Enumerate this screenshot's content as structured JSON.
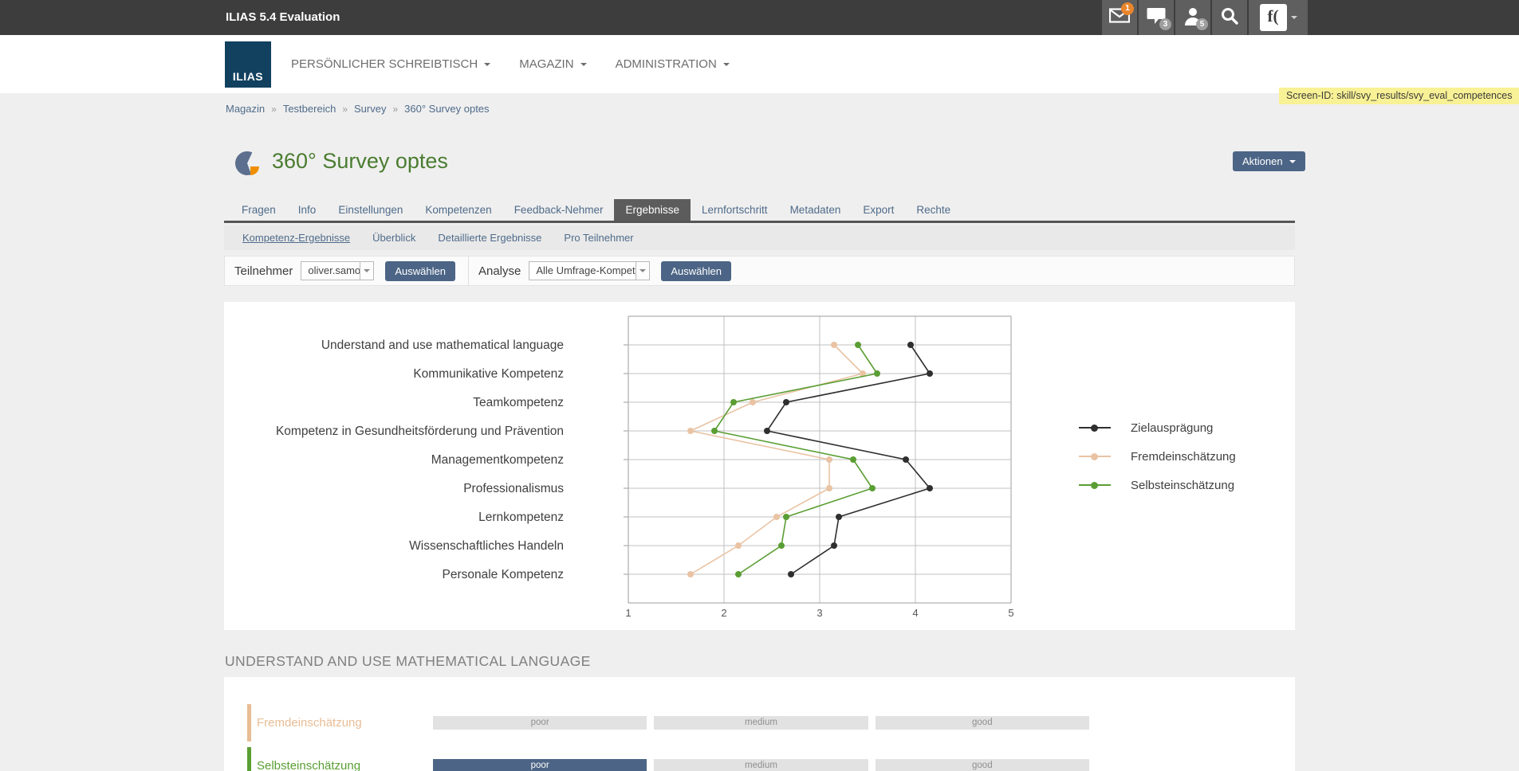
{
  "topbar": {
    "title": "ILIAS 5.4 Evaluation",
    "mail_badge": "1",
    "chat_badge": "3",
    "users_badge": "5"
  },
  "header": {
    "logo_text": "ILIAS",
    "client_logo_text": "f(",
    "menu_items": [
      "PERSÖNLICHER SCHREIBTISCH",
      "MAGAZIN",
      "ADMINISTRATION"
    ]
  },
  "screen_id_label": "Screen-ID: skill/svy_results/svy_eval_competences",
  "breadcrumb": {
    "items": [
      "Magazin",
      "Testbereich",
      "Survey",
      "360° Survey optes"
    ],
    "separator": "»"
  },
  "page": {
    "title": "360° Survey optes",
    "actions_button": "Aktionen"
  },
  "tabs": {
    "items": [
      "Fragen",
      "Info",
      "Einstellungen",
      "Kompetenzen",
      "Feedback-Nehmer",
      "Ergebnisse",
      "Lernfortschritt",
      "Metadaten",
      "Export",
      "Rechte"
    ],
    "active": "Ergebnisse"
  },
  "subtabs": {
    "items": [
      "Kompetenz-Ergebnisse",
      "Überblick",
      "Detaillierte Ergebnisse",
      "Pro Teilnehmer"
    ],
    "active": "Kompetenz-Ergebnisse"
  },
  "filter_toolbar": {
    "participant_label": "Teilnehmer",
    "participant_selected": "oliver.samoila",
    "participant_button": "Auswählen",
    "analysis_label": "Analyse",
    "analysis_selected": "Alle Umfrage-Kompetenzen",
    "analysis_button": "Auswählen"
  },
  "chart_data": {
    "type": "line",
    "orientation": "horizontal_categories",
    "categories": [
      "Understand and use mathematical language",
      "Kommunikative Kompetenz",
      "Teamkompetenz",
      "Kompetenz in Gesundheitsförderung und Prävention",
      "Managementkompetenz",
      "Professionalismus",
      "Lernkompetenz",
      "Wissenschaftliches Handeln",
      "Personale Kompetenz"
    ],
    "series": [
      {
        "name": "Zielausprägung",
        "color": "#2f2f2f",
        "values": [
          3.95,
          4.15,
          2.65,
          2.45,
          3.9,
          4.15,
          3.2,
          3.15,
          2.7
        ]
      },
      {
        "name": "Fremdeinschätzung",
        "color": "#e9c3a3",
        "values": [
          3.15,
          3.45,
          2.3,
          1.65,
          3.1,
          3.1,
          2.55,
          2.15,
          1.65
        ]
      },
      {
        "name": "Selbsteinschätzung",
        "color": "#5a9e33",
        "values": [
          3.4,
          3.6,
          2.1,
          1.9,
          3.35,
          3.55,
          2.65,
          2.6,
          2.15
        ]
      }
    ],
    "xlim": [
      1,
      5
    ],
    "x_ticks": [
      "1",
      "2",
      "3",
      "4",
      "5"
    ],
    "grid": true,
    "legend_position": "right"
  },
  "detail_section": {
    "title": "UNDERSTAND AND USE MATHEMATICAL LANGUAGE",
    "scale_rows": [
      {
        "label": "Fremdeinschätzung",
        "color": "#e8bd95",
        "segments": [
          {
            "label": "poor",
            "active": false
          },
          {
            "label": "medium",
            "active": false
          },
          {
            "label": "good",
            "active": false
          }
        ]
      },
      {
        "label": "Selbsteinschätzung",
        "color": "#5a9e33",
        "segments": [
          {
            "label": "poor",
            "active": true
          },
          {
            "label": "medium",
            "active": false
          },
          {
            "label": "good",
            "active": false
          }
        ]
      }
    ]
  },
  "colors": {
    "accent_slate": "#4c6586",
    "title_green": "#4a7c30",
    "screen_id_bg": "#f8f195",
    "badge_orange": "#e8862d",
    "badge_gray": "#9e9e9e",
    "topbar_bg": "#3d3d3d",
    "active_tab_bg": "#5c5c5c"
  }
}
